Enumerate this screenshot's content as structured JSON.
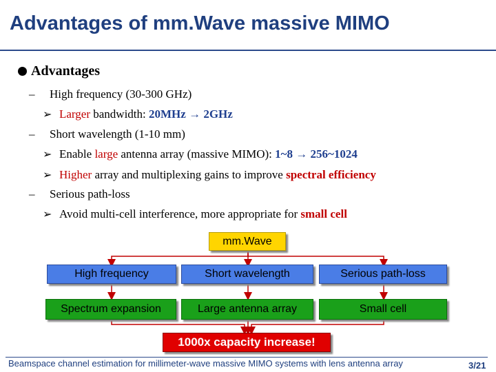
{
  "title": "Advantages of mm.Wave massive MIMO",
  "bullet": "Advantages",
  "items": [
    {
      "text": "High frequency (30-300 GHz)",
      "subs": [
        {
          "parts": [
            {
              "t": "Larger",
              "c": "red"
            },
            {
              "t": " bandwidth: ",
              "c": ""
            },
            {
              "t": "20MHz → 2GHz",
              "c": "blue bold"
            }
          ]
        }
      ]
    },
    {
      "text": "Short wavelength (1-10 mm)",
      "subs": [
        {
          "parts": [
            {
              "t": "Enable ",
              "c": ""
            },
            {
              "t": "large",
              "c": "red"
            },
            {
              "t": " antenna array (massive MIMO): ",
              "c": ""
            },
            {
              "t": "1~8 → 256~1024",
              "c": "blue bold"
            }
          ]
        },
        {
          "parts": [
            {
              "t": "Higher",
              "c": "red"
            },
            {
              "t": " array and multiplexing gains to improve ",
              "c": ""
            },
            {
              "t": "spectral efficiency",
              "c": "red bold"
            }
          ]
        }
      ]
    },
    {
      "text": "Serious path-loss",
      "subs": [
        {
          "parts": [
            {
              "t": "Avoid multi-cell interference, more appropriate for ",
              "c": ""
            },
            {
              "t": "small cell",
              "c": "red bold"
            }
          ]
        }
      ]
    }
  ],
  "flow": {
    "top": "mm.Wave",
    "row1": [
      "High frequency",
      "Short wavelength",
      "Serious path-loss"
    ],
    "row2": [
      "Spectrum expansion",
      "Large antenna array",
      "Small cell"
    ],
    "result": "1000x capacity increase!"
  },
  "footer": "Beamspace channel estimation for millimeter-wave massive MIMO systems with lens antenna array",
  "page": "3/21"
}
